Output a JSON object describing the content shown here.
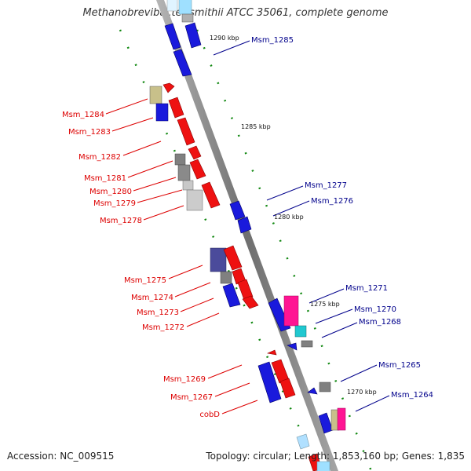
{
  "title": "Methanobrevibacter smithii ATCC 35061, complete genome",
  "footer": {
    "accession": "Accession: NC_009515",
    "summary": "Topology: circular; Length: 1,853,160 bp; Genes: 1,835"
  },
  "colors": {
    "backbone": "#888888",
    "left_labels": "#dd0000",
    "right_labels": "#00008b",
    "ticks": "#118811"
  },
  "scale_labels": [
    {
      "name": "1290-kbp",
      "text": "1290 kbp"
    },
    {
      "name": "1285-kbp",
      "text": "1285 kbp"
    },
    {
      "name": "1280-kbp",
      "text": "1280 kbp"
    },
    {
      "name": "1275-kbp",
      "text": "1275 kbp"
    },
    {
      "name": "1270-kbp",
      "text": "1270 kbp"
    }
  ],
  "left_genes": [
    {
      "name": "msm-1284",
      "text": "Msm_1284"
    },
    {
      "name": "msm-1283",
      "text": "Msm_1283"
    },
    {
      "name": "msm-1282",
      "text": "Msm_1282"
    },
    {
      "name": "msm-1281",
      "text": "Msm_1281"
    },
    {
      "name": "msm-1280",
      "text": "Msm_1280"
    },
    {
      "name": "msm-1279",
      "text": "Msm_1279"
    },
    {
      "name": "msm-1278",
      "text": "Msm_1278"
    },
    {
      "name": "msm-1275",
      "text": "Msm_1275"
    },
    {
      "name": "msm-1274",
      "text": "Msm_1274"
    },
    {
      "name": "msm-1273",
      "text": "Msm_1273"
    },
    {
      "name": "msm-1272",
      "text": "Msm_1272"
    },
    {
      "name": "msm-1269",
      "text": "Msm_1269"
    },
    {
      "name": "msm-1267",
      "text": "Msm_1267"
    },
    {
      "name": "cobd",
      "text": "cobD"
    }
  ],
  "right_genes": [
    {
      "name": "msm-1285",
      "text": "Msm_1285"
    },
    {
      "name": "msm-1277",
      "text": "Msm_1277"
    },
    {
      "name": "msm-1276",
      "text": "Msm_1276"
    },
    {
      "name": "msm-1271",
      "text": "Msm_1271"
    },
    {
      "name": "msm-1270",
      "text": "Msm_1270"
    },
    {
      "name": "msm-1268",
      "text": "Msm_1268"
    },
    {
      "name": "msm-1265",
      "text": "Msm_1265"
    },
    {
      "name": "msm-1264",
      "text": "Msm_1264"
    }
  ]
}
